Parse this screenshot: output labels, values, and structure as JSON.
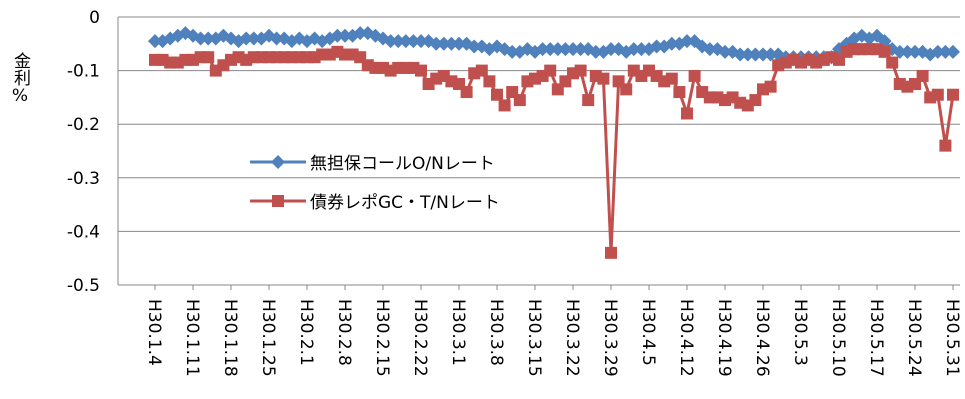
{
  "chart_data": {
    "type": "line",
    "y_label": "金利%",
    "ylim": [
      -0.5,
      0
    ],
    "yticks": [
      -0.5,
      -0.4,
      -0.3,
      -0.2,
      -0.1,
      0
    ],
    "grid": true,
    "legend": "inside-left",
    "categories": [
      "H30.1.4",
      null,
      null,
      null,
      null,
      "H30.1.11",
      null,
      null,
      null,
      null,
      "H30.1.18",
      null,
      null,
      null,
      null,
      "H30.1.25",
      null,
      null,
      null,
      null,
      "H30.2.1",
      null,
      null,
      null,
      null,
      "H30.2.8",
      null,
      null,
      null,
      null,
      "H30.2.15",
      null,
      null,
      null,
      null,
      "H30.2.22",
      null,
      null,
      null,
      null,
      "H30.3.1",
      null,
      null,
      null,
      null,
      "H30.3.8",
      null,
      null,
      null,
      null,
      "H30.3.15",
      null,
      null,
      null,
      null,
      "H30.3.22",
      null,
      null,
      null,
      null,
      "H30.3.29",
      null,
      null,
      null,
      null,
      "H30.4.5",
      null,
      null,
      null,
      null,
      "H30.4.12",
      null,
      null,
      null,
      null,
      "H30.4.19",
      null,
      null,
      null,
      null,
      "H30.4.26",
      null,
      null,
      null,
      null,
      "H30.5.3",
      null,
      null,
      null,
      null,
      "H30.5.10",
      null,
      null,
      null,
      null,
      "H30.5.17",
      null,
      null,
      null,
      null,
      "H30.5.24",
      null,
      null,
      null,
      null,
      "H30.5.31"
    ],
    "series": [
      {
        "name": "無担保コールO/Nレート",
        "color": "#4f81bd",
        "marker": "diamond",
        "values": [
          -0.045,
          -0.045,
          -0.04,
          -0.035,
          -0.03,
          -0.035,
          -0.04,
          -0.04,
          -0.04,
          -0.035,
          -0.04,
          -0.045,
          -0.04,
          -0.04,
          -0.04,
          -0.035,
          -0.04,
          -0.04,
          -0.045,
          -0.04,
          -0.045,
          -0.04,
          -0.045,
          -0.04,
          -0.035,
          -0.035,
          -0.035,
          -0.03,
          -0.03,
          -0.035,
          -0.04,
          -0.045,
          -0.045,
          -0.045,
          -0.045,
          -0.045,
          -0.045,
          -0.05,
          -0.05,
          -0.05,
          -0.05,
          -0.05,
          -0.055,
          -0.055,
          -0.06,
          -0.055,
          -0.06,
          -0.065,
          -0.065,
          -0.06,
          -0.065,
          -0.06,
          -0.06,
          -0.06,
          -0.06,
          -0.06,
          -0.06,
          -0.06,
          -0.065,
          -0.065,
          -0.06,
          -0.06,
          -0.065,
          -0.06,
          -0.06,
          -0.06,
          -0.055,
          -0.055,
          -0.05,
          -0.05,
          -0.045,
          -0.045,
          -0.055,
          -0.06,
          -0.06,
          -0.065,
          -0.065,
          -0.07,
          -0.07,
          -0.07,
          -0.07,
          -0.07,
          -0.07,
          -0.075,
          -0.075,
          -0.075,
          -0.075,
          -0.075,
          -0.075,
          -0.075,
          -0.06,
          -0.05,
          -0.04,
          -0.035,
          -0.04,
          -0.035,
          -0.045,
          -0.06,
          -0.065,
          -0.065,
          -0.065,
          -0.065,
          -0.07,
          -0.065,
          -0.065,
          -0.065
        ]
      },
      {
        "name": "債券レポGC・T/Nレート",
        "color": "#c0504d",
        "marker": "square",
        "values": [
          -0.08,
          -0.08,
          -0.085,
          -0.085,
          -0.08,
          -0.08,
          -0.075,
          -0.075,
          -0.1,
          -0.09,
          -0.08,
          -0.075,
          -0.08,
          -0.075,
          -0.075,
          -0.075,
          -0.075,
          -0.075,
          -0.075,
          -0.075,
          -0.075,
          -0.075,
          -0.07,
          -0.07,
          -0.065,
          -0.07,
          -0.07,
          -0.075,
          -0.09,
          -0.095,
          -0.095,
          -0.1,
          -0.095,
          -0.095,
          -0.095,
          -0.1,
          -0.125,
          -0.115,
          -0.11,
          -0.12,
          -0.125,
          -0.14,
          -0.105,
          -0.1,
          -0.12,
          -0.145,
          -0.165,
          -0.14,
          -0.155,
          -0.12,
          -0.115,
          -0.11,
          -0.1,
          -0.135,
          -0.12,
          -0.105,
          -0.1,
          -0.155,
          -0.11,
          -0.115,
          -0.44,
          -0.12,
          -0.135,
          -0.1,
          -0.11,
          -0.1,
          -0.11,
          -0.12,
          -0.115,
          -0.14,
          -0.18,
          -0.11,
          -0.14,
          -0.15,
          -0.15,
          -0.155,
          -0.15,
          -0.16,
          -0.165,
          -0.155,
          -0.135,
          -0.13,
          -0.09,
          -0.085,
          -0.08,
          -0.085,
          -0.08,
          -0.085,
          -0.08,
          -0.075,
          -0.08,
          -0.065,
          -0.06,
          -0.06,
          -0.06,
          -0.06,
          -0.065,
          -0.085,
          -0.125,
          -0.13,
          -0.125,
          -0.11,
          -0.15,
          -0.145,
          -0.24,
          -0.145
        ]
      }
    ]
  }
}
